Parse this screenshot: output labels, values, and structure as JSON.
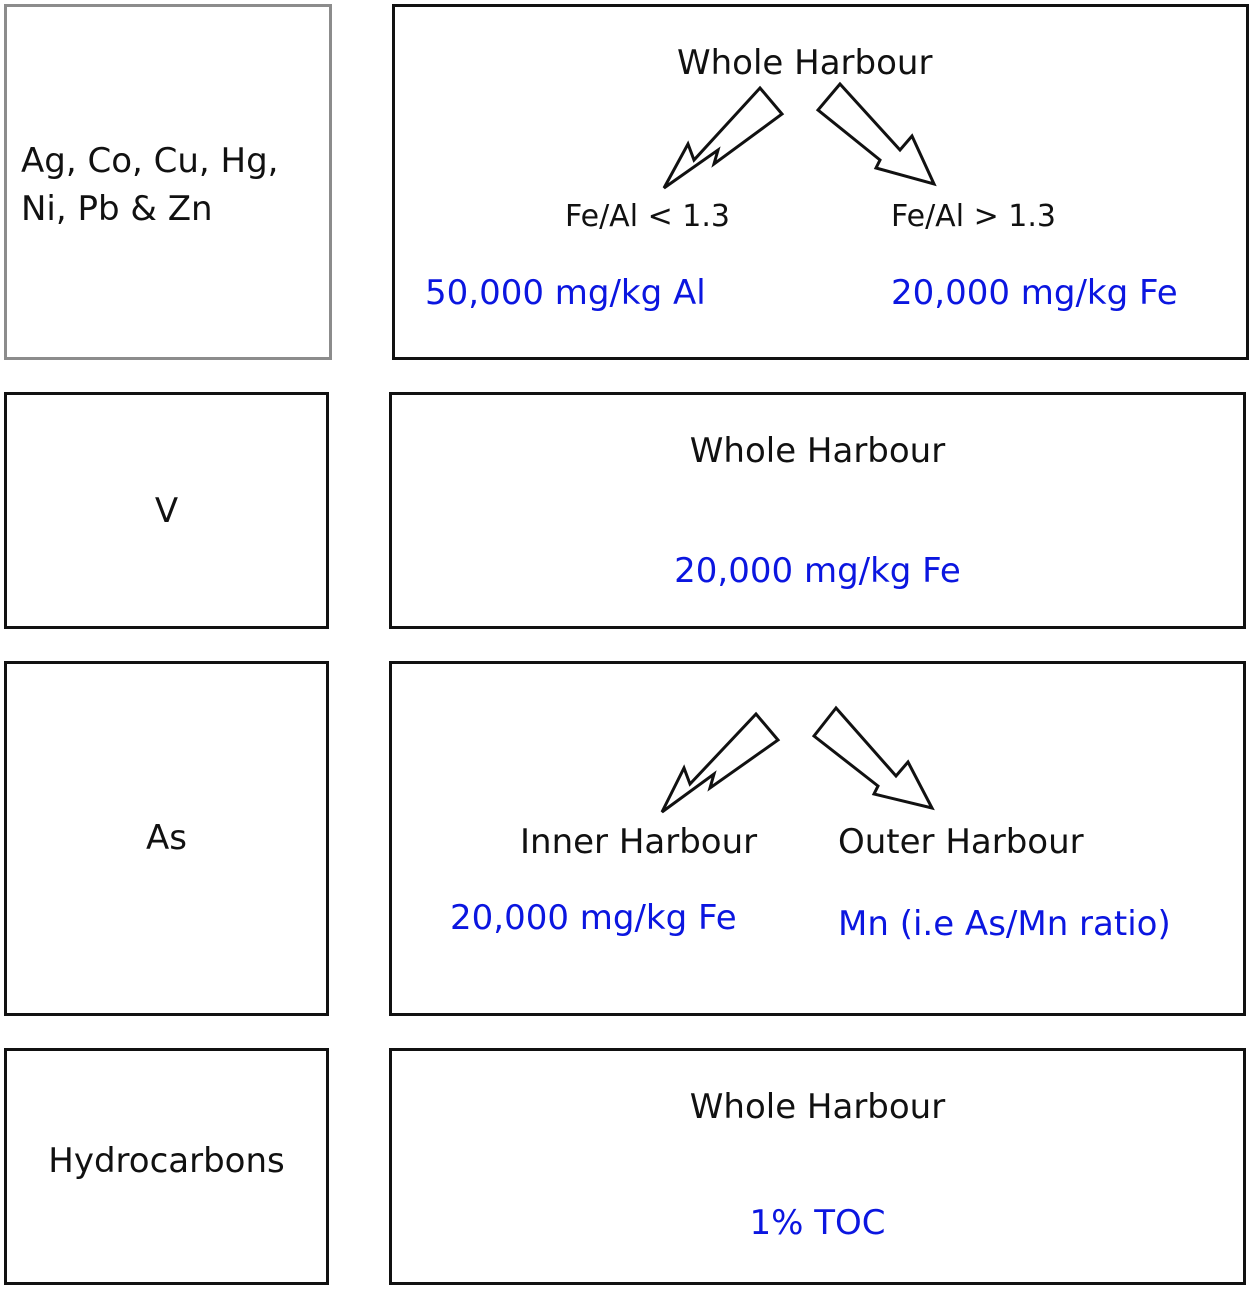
{
  "rows": [
    {
      "label": "Ag, Co, Cu, Hg,\nNi, Pb & Zn",
      "label_lines": [
        "Ag, Co, Cu, Hg,",
        "Ni, Pb & Zn"
      ],
      "title": "Whole Harbour",
      "branches": [
        {
          "condition": "Fe/Al < 1.3",
          "normalizer": "50,000 mg/kg Al"
        },
        {
          "condition": "Fe/Al > 1.3",
          "normalizer": "20,000 mg/kg Fe"
        }
      ]
    },
    {
      "label": "V",
      "title": "Whole Harbour",
      "normalizer": "20,000 mg/kg Fe"
    },
    {
      "label": "As",
      "branches": [
        {
          "condition": "Inner Harbour",
          "normalizer": "20,000 mg/kg Fe"
        },
        {
          "condition": "Outer Harbour",
          "normalizer": "Mn (i.e As/Mn ratio)"
        }
      ]
    },
    {
      "label": "Hydrocarbons",
      "title": "Whole Harbour",
      "normalizer": "1% TOC"
    }
  ],
  "colors": {
    "text": "#111111",
    "normalizer": "#0b16e0",
    "first_label_border": "#8c8c8c",
    "border": "#111111"
  }
}
